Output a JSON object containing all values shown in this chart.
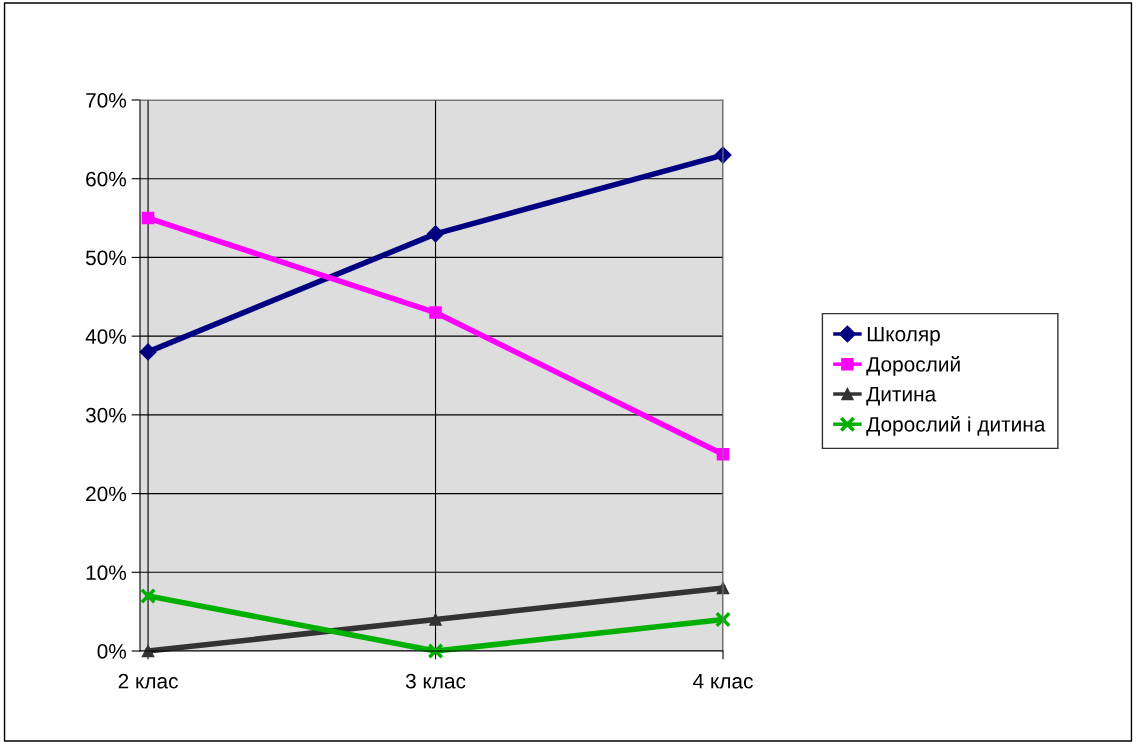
{
  "chart_data": {
    "type": "line",
    "categories": [
      "2 клас",
      "3 клас",
      "4 клас"
    ],
    "series": [
      {
        "name": "Школяр",
        "color": "#000080",
        "marker": "diamond",
        "values": [
          38,
          53,
          63
        ]
      },
      {
        "name": "Дорослий",
        "color": "#ff00ff",
        "marker": "square",
        "values": [
          55,
          43,
          25
        ]
      },
      {
        "name": "Дитина",
        "color": "#333333",
        "marker": "triangle",
        "values": [
          0,
          4,
          8
        ]
      },
      {
        "name": "Дорослий і дитина",
        "color": "#00b000",
        "marker": "cross",
        "values": [
          7,
          0,
          4
        ]
      }
    ],
    "ylim": [
      0,
      70
    ],
    "yticks": [
      {
        "value": 0,
        "label": "0%"
      },
      {
        "value": 10,
        "label": "10%"
      },
      {
        "value": 20,
        "label": "20%"
      },
      {
        "value": 30,
        "label": "30%"
      },
      {
        "value": 40,
        "label": "40%"
      },
      {
        "value": 50,
        "label": "50%"
      },
      {
        "value": 60,
        "label": "60%"
      },
      {
        "value": 70,
        "label": "70%"
      }
    ],
    "grid": true,
    "legend": "right",
    "line_style": "solid"
  }
}
